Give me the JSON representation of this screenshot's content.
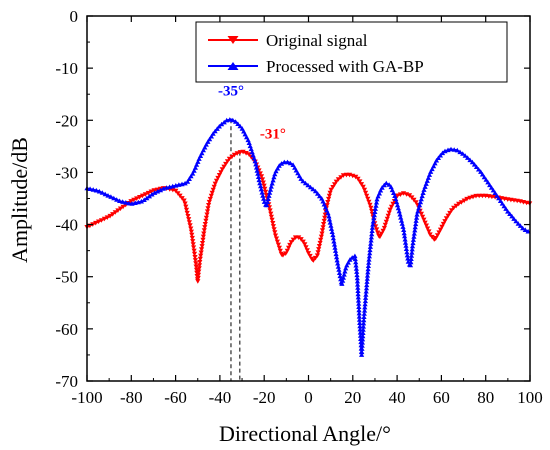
{
  "chart_data": {
    "type": "line",
    "xlabel": "Directional Angle/°",
    "ylabel": "Amplitude/dB",
    "xlim": [
      -100,
      100
    ],
    "ylim": [
      -70,
      0
    ],
    "xticks": [
      -100,
      -80,
      -60,
      -40,
      -20,
      0,
      20,
      40,
      60,
      80,
      100
    ],
    "yticks": [
      0,
      -10,
      -20,
      -30,
      -40,
      -50,
      -60,
      -70
    ],
    "grid": false,
    "legend_position": "top-right",
    "series": [
      {
        "name": "Original signal",
        "color": "#ff0000",
        "marker": "triangle-down",
        "points": [
          [
            -100,
            -40.5
          ],
          [
            -95,
            -39.5
          ],
          [
            -90,
            -38.5
          ],
          [
            -85,
            -37
          ],
          [
            -80,
            -35.5
          ],
          [
            -75,
            -34.5
          ],
          [
            -70,
            -33.5
          ],
          [
            -65,
            -33
          ],
          [
            -60,
            -33.5
          ],
          [
            -56,
            -35.5
          ],
          [
            -53,
            -41
          ],
          [
            -51,
            -47
          ],
          [
            -50,
            -51
          ],
          [
            -49,
            -47
          ],
          [
            -47,
            -41
          ],
          [
            -45,
            -36
          ],
          [
            -42,
            -32
          ],
          [
            -39,
            -29.5
          ],
          [
            -36,
            -27.5
          ],
          [
            -33,
            -26.5
          ],
          [
            -30,
            -26
          ],
          [
            -27,
            -26.5
          ],
          [
            -24,
            -28
          ],
          [
            -21,
            -31
          ],
          [
            -18,
            -36
          ],
          [
            -15,
            -42
          ],
          [
            -12,
            -46
          ],
          [
            -10,
            -45.5
          ],
          [
            -8,
            -43.5
          ],
          [
            -6,
            -42.5
          ],
          [
            -4,
            -42.5
          ],
          [
            -2,
            -43.5
          ],
          [
            0,
            -45.5
          ],
          [
            2,
            -47
          ],
          [
            4,
            -46
          ],
          [
            6,
            -42
          ],
          [
            8,
            -37
          ],
          [
            10,
            -33.5
          ],
          [
            13,
            -31.5
          ],
          [
            16,
            -30.5
          ],
          [
            19,
            -30.5
          ],
          [
            22,
            -31
          ],
          [
            25,
            -33
          ],
          [
            28,
            -36.5
          ],
          [
            30,
            -40
          ],
          [
            32,
            -42.5
          ],
          [
            34,
            -41
          ],
          [
            37,
            -37
          ],
          [
            40,
            -34.5
          ],
          [
            43,
            -34
          ],
          [
            46,
            -34.5
          ],
          [
            49,
            -36
          ],
          [
            52,
            -39
          ],
          [
            55,
            -42
          ],
          [
            57,
            -43
          ],
          [
            59,
            -41.5
          ],
          [
            62,
            -39
          ],
          [
            65,
            -37
          ],
          [
            68,
            -36
          ],
          [
            72,
            -35
          ],
          [
            76,
            -34.5
          ],
          [
            80,
            -34.5
          ],
          [
            85,
            -34.8
          ],
          [
            90,
            -35.2
          ],
          [
            95,
            -35.5
          ],
          [
            100,
            -36
          ]
        ]
      },
      {
        "name": "Processed with GA-BP",
        "color": "#0000ff",
        "marker": "triangle-up",
        "points": [
          [
            -100,
            -33
          ],
          [
            -95,
            -33.5
          ],
          [
            -90,
            -34.5
          ],
          [
            -85,
            -35.5
          ],
          [
            -80,
            -36
          ],
          [
            -75,
            -35.5
          ],
          [
            -70,
            -34
          ],
          [
            -65,
            -33
          ],
          [
            -60,
            -32.5
          ],
          [
            -55,
            -32
          ],
          [
            -52,
            -30
          ],
          [
            -49,
            -27
          ],
          [
            -46,
            -24.5
          ],
          [
            -43,
            -22.5
          ],
          [
            -40,
            -21
          ],
          [
            -37,
            -20
          ],
          [
            -35,
            -19.8
          ],
          [
            -33,
            -20.2
          ],
          [
            -30,
            -21.5
          ],
          [
            -27,
            -24
          ],
          [
            -24,
            -28
          ],
          [
            -22,
            -32
          ],
          [
            -20,
            -35.5
          ],
          [
            -19,
            -36.5
          ],
          [
            -17,
            -33
          ],
          [
            -15,
            -30
          ],
          [
            -13,
            -28.5
          ],
          [
            -11,
            -28
          ],
          [
            -9,
            -28
          ],
          [
            -7,
            -28.5
          ],
          [
            -5,
            -30
          ],
          [
            -3,
            -31.5
          ],
          [
            0,
            -32.5
          ],
          [
            3,
            -33.5
          ],
          [
            6,
            -35
          ],
          [
            9,
            -38
          ],
          [
            11,
            -42
          ],
          [
            13,
            -47
          ],
          [
            15,
            -51.5
          ],
          [
            17,
            -48
          ],
          [
            19,
            -46.5
          ],
          [
            21,
            -46
          ],
          [
            22,
            -50
          ],
          [
            23,
            -58
          ],
          [
            24,
            -65
          ],
          [
            25,
            -58
          ],
          [
            27,
            -48
          ],
          [
            29,
            -40
          ],
          [
            31,
            -35
          ],
          [
            33,
            -33
          ],
          [
            35,
            -32
          ],
          [
            37,
            -32.5
          ],
          [
            39,
            -34.5
          ],
          [
            41,
            -37.5
          ],
          [
            43,
            -41
          ],
          [
            45,
            -47
          ],
          [
            46,
            -48
          ],
          [
            47,
            -44
          ],
          [
            49,
            -38
          ],
          [
            52,
            -33.5
          ],
          [
            55,
            -30
          ],
          [
            58,
            -27.5
          ],
          [
            61,
            -26
          ],
          [
            64,
            -25.5
          ],
          [
            67,
            -25.7
          ],
          [
            70,
            -26.5
          ],
          [
            74,
            -28
          ],
          [
            78,
            -30
          ],
          [
            82,
            -32.5
          ],
          [
            86,
            -35
          ],
          [
            90,
            -37.5
          ],
          [
            94,
            -39.5
          ],
          [
            97,
            -40.8
          ],
          [
            100,
            -41.5
          ]
        ]
      }
    ],
    "annotations": [
      {
        "text": "-35°",
        "x": -35,
        "color": "#0000ff"
      },
      {
        "text": "-31°",
        "x": -31,
        "color": "#ff0000"
      }
    ],
    "reference_lines": [
      {
        "x": -35,
        "y_from": -19.8,
        "y_to": -70,
        "style": "dashed"
      },
      {
        "x": -31,
        "y_from": -26,
        "y_to": -70,
        "style": "dashed"
      }
    ]
  }
}
